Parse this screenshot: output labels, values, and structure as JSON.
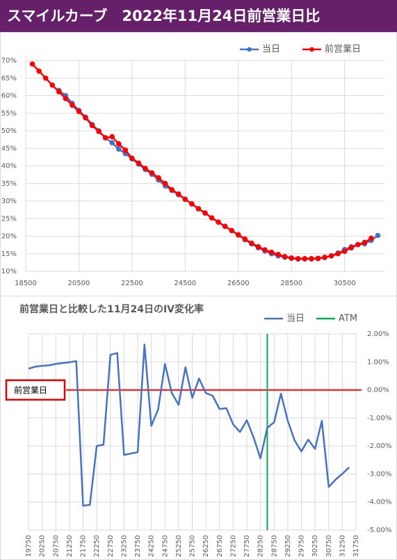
{
  "header": {
    "title": "スマイルカーブ　2022年11月24日前営業日比"
  },
  "chart_data": [
    {
      "type": "line",
      "x": [
        18750,
        19000,
        19250,
        19500,
        19750,
        20000,
        20250,
        20500,
        20750,
        21000,
        21250,
        21500,
        21750,
        22000,
        22250,
        22500,
        22750,
        23000,
        23250,
        23500,
        23750,
        24000,
        24250,
        24500,
        24750,
        25000,
        25250,
        25500,
        25750,
        26000,
        26250,
        26500,
        26750,
        27000,
        27250,
        27500,
        27750,
        28000,
        28250,
        28500,
        28750,
        29000,
        29250,
        29500,
        29750,
        30000,
        30250,
        30500,
        30750,
        31000,
        31250,
        31500,
        31750
      ],
      "xlim": [
        18500,
        32000
      ],
      "xticks": [
        18500,
        20500,
        22500,
        24500,
        26500,
        28500,
        30500
      ],
      "ylim": [
        10,
        70
      ],
      "yticks": [
        {
          "value": 10,
          "label": "10%"
        },
        {
          "value": 15,
          "label": "15%"
        },
        {
          "value": 20,
          "label": "20%"
        },
        {
          "value": 25,
          "label": "25%"
        },
        {
          "value": 30,
          "label": "30%"
        },
        {
          "value": 35,
          "label": "35%"
        },
        {
          "value": 40,
          "label": "40%"
        },
        {
          "value": 45,
          "label": "45%"
        },
        {
          "value": 50,
          "label": "50%"
        },
        {
          "value": 55,
          "label": "55%"
        },
        {
          "value": 60,
          "label": "60%"
        },
        {
          "value": 65,
          "label": "65%"
        },
        {
          "value": 70,
          "label": "70%"
        }
      ],
      "grid": true,
      "legend": "top-right",
      "series": [
        {
          "name": "当日",
          "color": "#4472c4",
          "marker": true,
          "values": [
            null,
            null,
            null,
            null,
            61.5,
            60.0,
            57.8,
            55.8,
            53.9,
            51.8,
            50.0,
            48.0,
            46.6,
            44.8,
            43.5,
            42.0,
            40.5,
            39.0,
            37.6,
            36.0,
            34.3,
            33.0,
            31.8,
            30.5,
            29.2,
            27.8,
            26.6,
            25.2,
            24.0,
            22.8,
            21.6,
            20.3,
            19.0,
            17.8,
            16.7,
            15.8,
            15.0,
            14.4,
            14.0,
            13.7,
            13.5,
            13.5,
            13.5,
            13.6,
            13.9,
            14.4,
            15.2,
            16.2,
            17.0,
            17.6,
            17.8,
            18.8,
            20.2
          ]
        },
        {
          "name": "前営業日",
          "color": "#ff0000",
          "marker": true,
          "values": [
            69.0,
            67.0,
            65.0,
            63.0,
            61.1,
            59.2,
            57.3,
            55.5,
            53.7,
            51.5,
            49.8,
            48.0,
            48.3,
            46.3,
            44.5,
            42.2,
            40.8,
            39.3,
            38.0,
            36.6,
            35.0,
            33.2,
            32.0,
            30.5,
            29.2,
            27.8,
            26.6,
            25.2,
            24.0,
            22.8,
            21.6,
            20.4,
            19.2,
            18.0,
            17.0,
            16.1,
            15.4,
            14.8,
            14.2,
            13.8,
            13.6,
            13.6,
            13.6,
            13.7,
            14.0,
            14.4,
            15.0,
            15.7,
            16.7,
            17.6,
            18.2,
            19.4,
            null
          ]
        }
      ]
    },
    {
      "type": "line",
      "title": "前営業日と比較した11月24日のIV変化率",
      "x": [
        19750,
        20000,
        20250,
        20500,
        20750,
        21000,
        21250,
        21500,
        21750,
        22000,
        22250,
        22500,
        22750,
        23000,
        23250,
        23500,
        23750,
        24000,
        24250,
        24500,
        24750,
        25000,
        25250,
        25500,
        25750,
        26000,
        26250,
        26500,
        26750,
        27000,
        27250,
        27500,
        27750,
        28000,
        28250,
        28500,
        28750,
        29000,
        29250,
        29500,
        29750,
        30000,
        30250,
        30500,
        30750,
        31000,
        31250,
        31500
      ],
      "xlim": [
        19750,
        31750
      ],
      "xticks": [
        19750,
        20250,
        20750,
        21250,
        21750,
        22250,
        22750,
        23250,
        23750,
        24250,
        24750,
        25250,
        25750,
        26250,
        26750,
        27250,
        27750,
        28250,
        28750,
        29250,
        29750,
        30250,
        30750,
        31250,
        31750
      ],
      "ylim": [
        -5,
        2
      ],
      "yticks": [
        {
          "value": 2,
          "label": "2.00%"
        },
        {
          "value": 1,
          "label": "1.00%"
        },
        {
          "value": 0,
          "label": "0.00%"
        },
        {
          "value": -1,
          "label": "-1.00%"
        },
        {
          "value": -2,
          "label": "-2.00%"
        },
        {
          "value": -3,
          "label": "-3.00%"
        },
        {
          "value": -4,
          "label": "-4.00%"
        },
        {
          "value": -5,
          "label": "-5.00%"
        }
      ],
      "y_axis_side": "right",
      "grid": true,
      "legend": "top-right",
      "series": [
        {
          "name": "当日",
          "color": "#4472c4",
          "marker": false,
          "values": [
            0.76,
            0.83,
            0.86,
            0.88,
            0.93,
            0.96,
            0.99,
            1.03,
            -4.13,
            -4.1,
            -2.0,
            -1.95,
            1.25,
            1.32,
            -2.32,
            -2.27,
            -2.22,
            1.62,
            -1.28,
            -0.7,
            0.93,
            -0.11,
            -0.53,
            0.81,
            -0.28,
            0.41,
            -0.11,
            -0.21,
            -0.68,
            -0.65,
            -1.23,
            -1.5,
            -1.08,
            -1.7,
            -2.44,
            -1.35,
            -1.15,
            -0.13,
            -1.1,
            -1.8,
            -2.19,
            -1.77,
            -2.1,
            -1.1,
            -3.46,
            -3.2,
            -2.99,
            -2.76
          ]
        }
      ],
      "vlines": [
        {
          "name": "ATM",
          "color": "#00b050",
          "x": 28500
        }
      ],
      "hlines": [
        {
          "label": "前営業日",
          "color": "#ff0000",
          "y": 0
        }
      ]
    }
  ]
}
